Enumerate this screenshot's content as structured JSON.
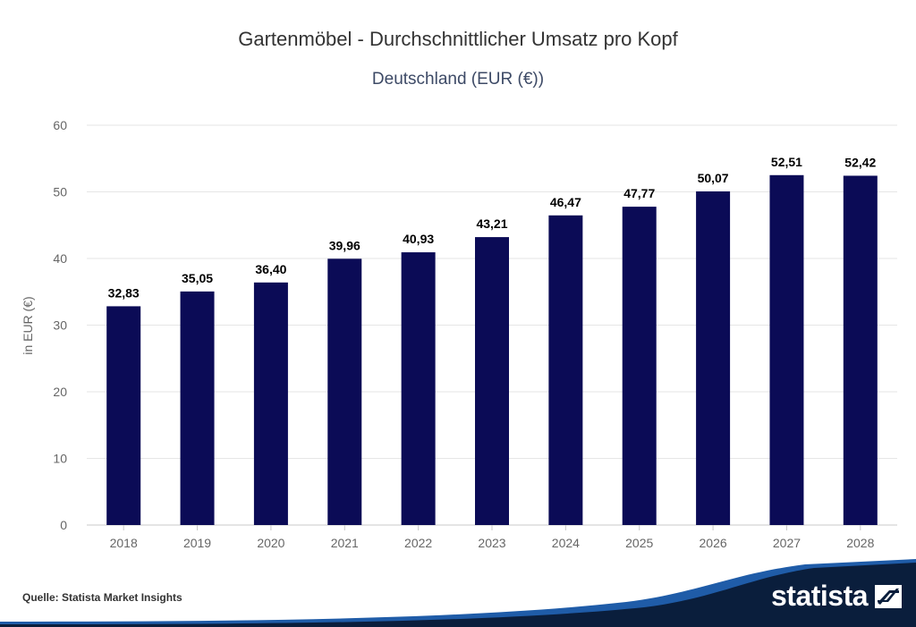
{
  "chart_data": {
    "type": "bar",
    "title": "Gartenmöbel - Durchschnittlicher Umsatz pro Kopf",
    "subtitle": "Deutschland (EUR (€))",
    "categories": [
      "2018",
      "2019",
      "2020",
      "2021",
      "2022",
      "2023",
      "2024",
      "2025",
      "2026",
      "2027",
      "2028"
    ],
    "values": [
      32.83,
      35.05,
      36.4,
      39.96,
      40.93,
      43.21,
      46.47,
      47.77,
      50.07,
      52.51,
      52.42
    ],
    "value_labels": [
      "32,83",
      "35,05",
      "36,40",
      "39,96",
      "40,93",
      "43,21",
      "46,47",
      "47,77",
      "50,07",
      "52,51",
      "52,42"
    ],
    "xlabel": "",
    "ylabel": "in EUR (€)",
    "ylim": [
      0,
      60
    ],
    "yticks": [
      "0",
      "10",
      "20",
      "30",
      "40",
      "50",
      "60"
    ],
    "grid": true,
    "bar_color": "#0b0b56"
  },
  "footer": {
    "source": "Quelle: Statista Market Insights",
    "brand": "statista"
  },
  "colors": {
    "footer_dark": "#0a1e3c",
    "footer_accent": "#1f5ca8"
  }
}
